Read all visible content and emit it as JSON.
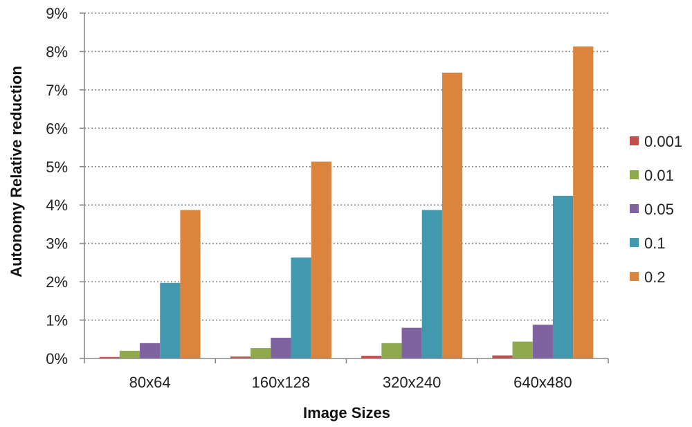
{
  "chart_data": {
    "type": "bar",
    "title": "",
    "xlabel": "Image Sizes",
    "ylabel": "Autonomy Relative reduction",
    "categories": [
      "80x64",
      "160x128",
      "320x240",
      "640x480"
    ],
    "series": [
      {
        "name": "0.001",
        "color": "#c0504d",
        "values": [
          0.04,
          0.05,
          0.07,
          0.08
        ]
      },
      {
        "name": "0.01",
        "color": "#8faa4c",
        "values": [
          0.2,
          0.27,
          0.4,
          0.44
        ]
      },
      {
        "name": "0.05",
        "color": "#7f62a0",
        "values": [
          0.4,
          0.54,
          0.8,
          0.88
        ]
      },
      {
        "name": "0.1",
        "color": "#4198af",
        "values": [
          1.97,
          2.63,
          3.87,
          4.24
        ]
      },
      {
        "name": "0.2",
        "color": "#db843d",
        "values": [
          3.87,
          5.13,
          7.45,
          8.13
        ]
      }
    ],
    "ylim": [
      0,
      9
    ],
    "yticks": [
      "0%",
      "1%",
      "2%",
      "3%",
      "4%",
      "5%",
      "6%",
      "7%",
      "8%",
      "9%"
    ],
    "grid": true,
    "legend": "right"
  }
}
